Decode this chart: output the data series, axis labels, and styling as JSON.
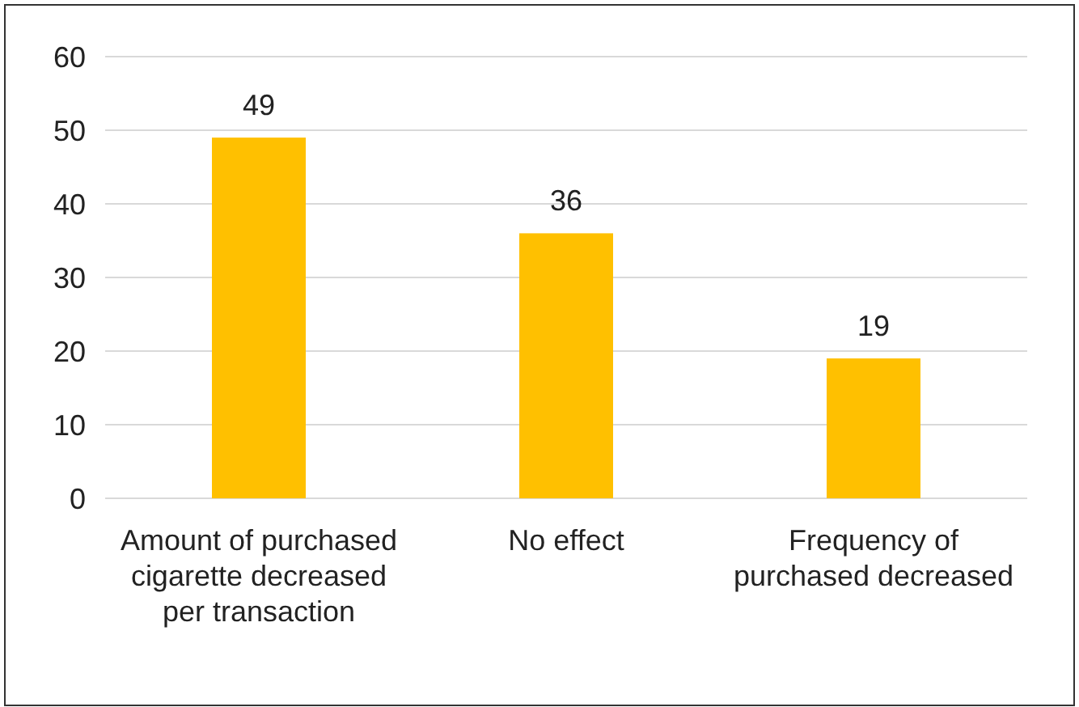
{
  "chart_data": {
    "type": "bar",
    "categories": [
      "Amount of purchased cigarette decreased per transaction",
      "No effect",
      "Frequency of purchased decreased"
    ],
    "values": [
      49,
      36,
      19
    ],
    "color": "#ffc000",
    "ylim": [
      0,
      60
    ],
    "yticks": [
      0,
      10,
      20,
      30,
      40,
      50,
      60
    ],
    "grid": "y",
    "data_labels": true
  }
}
